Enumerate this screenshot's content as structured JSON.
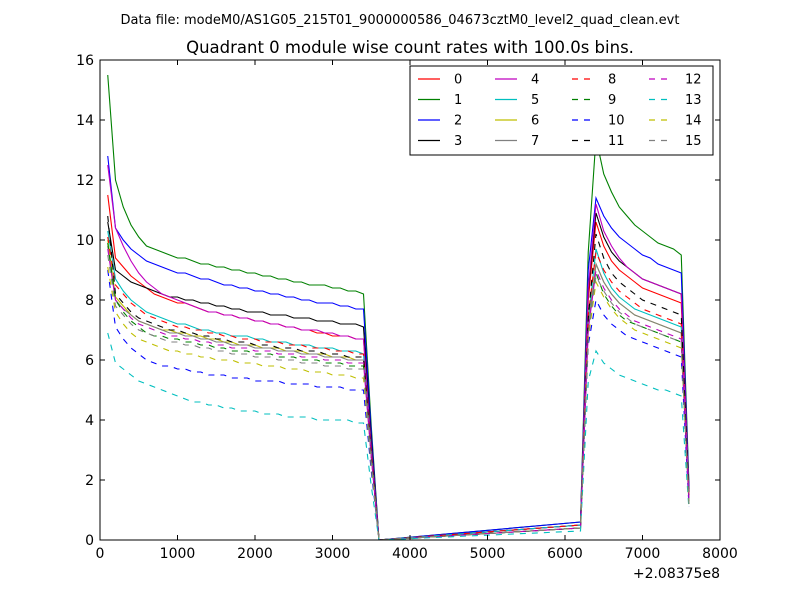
{
  "figure": {
    "suptitle": "Data file: modeM0/AS1G05_215T01_9000000586_04673cztM0_level2_quad_clean.evt",
    "title": "Quadrant 0 module wise count rates with 100.0s bins.",
    "x_offset_label": "+2.08375e8"
  },
  "chart_data": {
    "type": "line",
    "title": "Quadrant 0 module wise count rates with 100.0s bins.",
    "xlabel": "",
    "ylabel": "",
    "xlim": [
      0,
      8000
    ],
    "ylim": [
      0,
      16
    ],
    "x_offset": 208375000,
    "xticks": [
      0,
      1000,
      2000,
      3000,
      4000,
      5000,
      6000,
      7000,
      8000
    ],
    "yticks": [
      0,
      2,
      4,
      6,
      8,
      10,
      12,
      14,
      16
    ],
    "grid": false,
    "legend_position": "top-right",
    "legend_columns": 4,
    "x": [
      100,
      200,
      300,
      400,
      500,
      600,
      700,
      800,
      900,
      1000,
      1100,
      1200,
      1300,
      1400,
      1500,
      1600,
      1700,
      1800,
      1900,
      2000,
      2100,
      2200,
      2300,
      2400,
      2500,
      2600,
      2700,
      2800,
      2900,
      3000,
      3100,
      3200,
      3300,
      3400,
      3500,
      3600,
      6200,
      6300,
      6400,
      6500,
      6600,
      6700,
      6800,
      6900,
      7000,
      7100,
      7200,
      7300,
      7400,
      7500,
      7600
    ],
    "series": [
      {
        "name": "0",
        "color": "#ff0000",
        "dash": "solid",
        "values": [
          11.5,
          9.4,
          9.1,
          8.8,
          8.6,
          8.4,
          8.2,
          8.1,
          8.0,
          7.9,
          7.9,
          7.8,
          7.7,
          7.6,
          7.6,
          7.5,
          7.5,
          7.4,
          7.4,
          7.3,
          7.3,
          7.2,
          7.2,
          7.1,
          7.1,
          7.0,
          7.0,
          6.9,
          6.9,
          6.8,
          6.8,
          6.8,
          6.7,
          6.7,
          3.2,
          0.0,
          0.5,
          8.0,
          10.6,
          9.8,
          9.3,
          9.0,
          8.8,
          8.6,
          8.4,
          8.3,
          8.2,
          8.1,
          8.0,
          7.9,
          1.5
        ]
      },
      {
        "name": "1",
        "color": "#008000",
        "dash": "solid",
        "values": [
          15.5,
          12.0,
          11.1,
          10.5,
          10.1,
          9.8,
          9.7,
          9.6,
          9.5,
          9.4,
          9.4,
          9.3,
          9.2,
          9.2,
          9.1,
          9.1,
          9.0,
          9.0,
          8.9,
          8.9,
          8.8,
          8.8,
          8.7,
          8.7,
          8.6,
          8.6,
          8.5,
          8.5,
          8.5,
          8.4,
          8.4,
          8.3,
          8.3,
          8.2,
          3.8,
          0.0,
          0.6,
          9.6,
          13.4,
          12.2,
          11.6,
          11.1,
          10.8,
          10.5,
          10.3,
          10.1,
          9.9,
          9.8,
          9.7,
          9.5,
          1.8
        ]
      },
      {
        "name": "2",
        "color": "#0000ff",
        "dash": "solid",
        "values": [
          12.8,
          10.4,
          10.0,
          9.7,
          9.5,
          9.3,
          9.2,
          9.1,
          9.0,
          8.9,
          8.9,
          8.8,
          8.7,
          8.7,
          8.6,
          8.5,
          8.5,
          8.4,
          8.4,
          8.3,
          8.3,
          8.2,
          8.2,
          8.1,
          8.1,
          8.0,
          8.0,
          7.9,
          7.9,
          7.9,
          7.8,
          7.8,
          7.7,
          7.7,
          3.6,
          0.0,
          0.6,
          9.0,
          11.4,
          10.8,
          10.4,
          10.1,
          9.9,
          9.7,
          9.5,
          9.4,
          9.2,
          9.1,
          9.0,
          8.9,
          1.7
        ]
      },
      {
        "name": "3",
        "color": "#000000",
        "dash": "solid",
        "values": [
          10.6,
          9.0,
          8.8,
          8.6,
          8.5,
          8.4,
          8.3,
          8.2,
          8.1,
          8.1,
          8.0,
          8.0,
          7.9,
          7.9,
          7.8,
          7.8,
          7.7,
          7.7,
          7.6,
          7.6,
          7.6,
          7.5,
          7.5,
          7.5,
          7.4,
          7.4,
          7.4,
          7.3,
          7.3,
          7.3,
          7.2,
          7.2,
          7.2,
          7.1,
          3.3,
          0.0,
          0.5,
          8.3,
          10.9,
          10.1,
          9.6,
          9.3,
          9.1,
          8.9,
          8.7,
          8.6,
          8.5,
          8.4,
          8.3,
          8.2,
          1.5
        ]
      },
      {
        "name": "4",
        "color": "#bf00bf",
        "dash": "solid",
        "values": [
          12.5,
          10.4,
          9.8,
          9.3,
          8.9,
          8.6,
          8.4,
          8.2,
          8.1,
          8.0,
          7.9,
          7.8,
          7.7,
          7.6,
          7.6,
          7.5,
          7.5,
          7.4,
          7.4,
          7.3,
          7.3,
          7.2,
          7.2,
          7.1,
          7.1,
          7.0,
          7.0,
          7.0,
          6.9,
          6.9,
          6.8,
          6.8,
          6.7,
          6.7,
          3.1,
          0.0,
          0.5,
          8.4,
          11.2,
          10.3,
          9.8,
          9.4,
          9.1,
          8.9,
          8.7,
          8.6,
          8.5,
          8.4,
          8.3,
          8.2,
          1.5
        ]
      },
      {
        "name": "5",
        "color": "#00bfbf",
        "dash": "solid",
        "values": [
          10.3,
          8.7,
          8.3,
          8.0,
          7.8,
          7.6,
          7.5,
          7.4,
          7.3,
          7.2,
          7.2,
          7.1,
          7.0,
          7.0,
          6.9,
          6.9,
          6.8,
          6.8,
          6.8,
          6.7,
          6.7,
          6.6,
          6.6,
          6.6,
          6.5,
          6.5,
          6.5,
          6.4,
          6.4,
          6.4,
          6.3,
          6.3,
          6.3,
          6.2,
          2.9,
          0.0,
          0.5,
          7.3,
          9.7,
          8.9,
          8.4,
          8.1,
          7.9,
          7.7,
          7.6,
          7.5,
          7.4,
          7.3,
          7.2,
          7.1,
          1.3
        ]
      },
      {
        "name": "6",
        "color": "#bfbf00",
        "dash": "solid",
        "values": [
          10.0,
          8.1,
          7.8,
          7.5,
          7.3,
          7.2,
          7.1,
          7.0,
          7.0,
          6.9,
          6.9,
          6.8,
          6.8,
          6.7,
          6.7,
          6.6,
          6.6,
          6.5,
          6.5,
          6.5,
          6.4,
          6.4,
          6.4,
          6.3,
          6.3,
          6.3,
          6.2,
          6.2,
          6.2,
          6.1,
          6.1,
          6.1,
          6.0,
          6.0,
          2.8,
          0.0,
          0.4,
          7.1,
          9.2,
          8.6,
          8.2,
          7.9,
          7.7,
          7.5,
          7.4,
          7.3,
          7.2,
          7.1,
          7.0,
          6.9,
          1.3
        ]
      },
      {
        "name": "7",
        "color": "#808080",
        "dash": "solid",
        "values": [
          9.8,
          8.0,
          7.7,
          7.5,
          7.3,
          7.2,
          7.1,
          7.0,
          6.9,
          6.9,
          6.8,
          6.8,
          6.7,
          6.7,
          6.6,
          6.6,
          6.5,
          6.5,
          6.5,
          6.4,
          6.4,
          6.4,
          6.3,
          6.3,
          6.3,
          6.2,
          6.2,
          6.2,
          6.1,
          6.1,
          6.1,
          6.0,
          6.0,
          6.0,
          2.8,
          0.0,
          0.4,
          7.1,
          9.2,
          8.6,
          8.2,
          7.9,
          7.7,
          7.5,
          7.4,
          7.3,
          7.2,
          7.1,
          7.0,
          6.9,
          1.3
        ]
      },
      {
        "name": "8",
        "color": "#ff0000",
        "dash": "dashed",
        "values": [
          10.1,
          8.5,
          8.2,
          7.9,
          7.7,
          7.5,
          7.4,
          7.3,
          7.2,
          7.1,
          7.1,
          7.0,
          7.0,
          6.9,
          6.9,
          6.8,
          6.8,
          6.7,
          6.7,
          6.7,
          6.6,
          6.6,
          6.6,
          6.5,
          6.5,
          6.5,
          6.4,
          6.4,
          6.4,
          6.3,
          6.3,
          6.3,
          6.2,
          6.2,
          2.9,
          0.0,
          0.5,
          7.5,
          9.6,
          9.0,
          8.6,
          8.3,
          8.1,
          7.9,
          7.7,
          7.6,
          7.5,
          7.4,
          7.3,
          7.2,
          1.3
        ]
      },
      {
        "name": "9",
        "color": "#008000",
        "dash": "dashed",
        "values": [
          9.9,
          8.0,
          7.6,
          7.3,
          7.1,
          6.9,
          6.8,
          6.8,
          6.7,
          6.7,
          6.6,
          6.6,
          6.5,
          6.5,
          6.4,
          6.4,
          6.3,
          6.3,
          6.3,
          6.2,
          6.2,
          6.2,
          6.1,
          6.1,
          6.1,
          6.0,
          6.0,
          6.0,
          5.9,
          5.9,
          5.9,
          5.8,
          5.8,
          5.8,
          2.7,
          0.0,
          0.4,
          6.8,
          8.9,
          8.2,
          7.8,
          7.5,
          7.3,
          7.2,
          7.1,
          7.0,
          6.9,
          6.8,
          6.7,
          6.6,
          1.2
        ]
      },
      {
        "name": "10",
        "color": "#0000ff",
        "dash": "dashed",
        "values": [
          9.0,
          7.1,
          6.7,
          6.4,
          6.2,
          6.0,
          5.9,
          5.8,
          5.8,
          5.7,
          5.7,
          5.6,
          5.6,
          5.5,
          5.5,
          5.5,
          5.4,
          5.4,
          5.4,
          5.3,
          5.3,
          5.3,
          5.3,
          5.2,
          5.2,
          5.2,
          5.2,
          5.1,
          5.1,
          5.1,
          5.1,
          5.0,
          5.0,
          5.0,
          2.3,
          0.0,
          0.4,
          6.5,
          8.0,
          7.5,
          7.2,
          7.0,
          6.8,
          6.7,
          6.6,
          6.5,
          6.4,
          6.3,
          6.2,
          6.1,
          1.1
        ]
      },
      {
        "name": "11",
        "color": "#000000",
        "dash": "dashed",
        "values": [
          10.8,
          8.2,
          7.9,
          7.6,
          7.4,
          7.3,
          7.2,
          7.1,
          7.0,
          7.0,
          6.9,
          6.9,
          6.8,
          6.8,
          6.7,
          6.7,
          6.6,
          6.6,
          6.6,
          6.5,
          6.5,
          6.5,
          6.4,
          6.4,
          6.4,
          6.3,
          6.3,
          6.3,
          6.2,
          6.2,
          6.2,
          6.1,
          6.1,
          6.1,
          2.8,
          0.0,
          0.4,
          7.4,
          10.2,
          9.4,
          8.9,
          8.6,
          8.4,
          8.2,
          8.0,
          7.9,
          7.8,
          7.7,
          7.6,
          7.5,
          1.4
        ]
      },
      {
        "name": "12",
        "color": "#bf00bf",
        "dash": "dashed",
        "values": [
          9.7,
          8.0,
          7.7,
          7.4,
          7.2,
          7.1,
          7.0,
          6.9,
          6.8,
          6.8,
          6.7,
          6.7,
          6.6,
          6.6,
          6.5,
          6.5,
          6.4,
          6.4,
          6.4,
          6.3,
          6.3,
          6.3,
          6.2,
          6.2,
          6.2,
          6.1,
          6.1,
          6.1,
          6.0,
          6.0,
          6.0,
          5.9,
          5.9,
          5.9,
          2.8,
          0.0,
          0.4,
          7.0,
          9.0,
          8.4,
          8.0,
          7.7,
          7.5,
          7.3,
          7.2,
          7.1,
          7.0,
          6.9,
          6.8,
          6.7,
          1.3
        ]
      },
      {
        "name": "13",
        "color": "#00bfbf",
        "dash": "dashed",
        "values": [
          6.9,
          5.9,
          5.7,
          5.5,
          5.3,
          5.2,
          5.1,
          5.0,
          4.9,
          4.8,
          4.7,
          4.6,
          4.6,
          4.5,
          4.5,
          4.4,
          4.4,
          4.3,
          4.3,
          4.3,
          4.2,
          4.2,
          4.2,
          4.1,
          4.1,
          4.1,
          4.1,
          4.0,
          4.0,
          4.0,
          4.0,
          4.0,
          3.9,
          3.9,
          1.8,
          0.0,
          0.3,
          5.3,
          6.3,
          5.9,
          5.7,
          5.5,
          5.4,
          5.3,
          5.2,
          5.1,
          5.0,
          5.0,
          4.9,
          4.8,
          1.0
        ]
      },
      {
        "name": "14",
        "color": "#bfbf00",
        "dash": "dashed",
        "values": [
          9.1,
          7.6,
          7.2,
          6.9,
          6.7,
          6.6,
          6.5,
          6.4,
          6.3,
          6.3,
          6.2,
          6.2,
          6.1,
          6.1,
          6.0,
          6.0,
          6.0,
          5.9,
          5.9,
          5.9,
          5.8,
          5.8,
          5.8,
          5.7,
          5.7,
          5.7,
          5.6,
          5.6,
          5.6,
          5.5,
          5.5,
          5.5,
          5.4,
          5.4,
          2.5,
          0.0,
          0.4,
          6.7,
          8.6,
          8.1,
          7.7,
          7.4,
          7.2,
          7.0,
          6.9,
          6.8,
          6.7,
          6.6,
          6.5,
          6.4,
          1.2
        ]
      },
      {
        "name": "15",
        "color": "#808080",
        "dash": "dashed",
        "values": [
          9.5,
          7.8,
          7.5,
          7.2,
          7.0,
          6.9,
          6.8,
          6.7,
          6.6,
          6.6,
          6.5,
          6.5,
          6.4,
          6.4,
          6.3,
          6.3,
          6.2,
          6.2,
          6.2,
          6.1,
          6.1,
          6.1,
          6.0,
          6.0,
          6.0,
          5.9,
          5.9,
          5.9,
          5.8,
          5.8,
          5.8,
          5.7,
          5.7,
          5.7,
          2.6,
          0.0,
          0.4,
          6.9,
          8.8,
          8.3,
          7.9,
          7.6,
          7.4,
          7.2,
          7.1,
          7.0,
          6.9,
          6.8,
          6.7,
          6.6,
          1.2
        ]
      }
    ]
  }
}
